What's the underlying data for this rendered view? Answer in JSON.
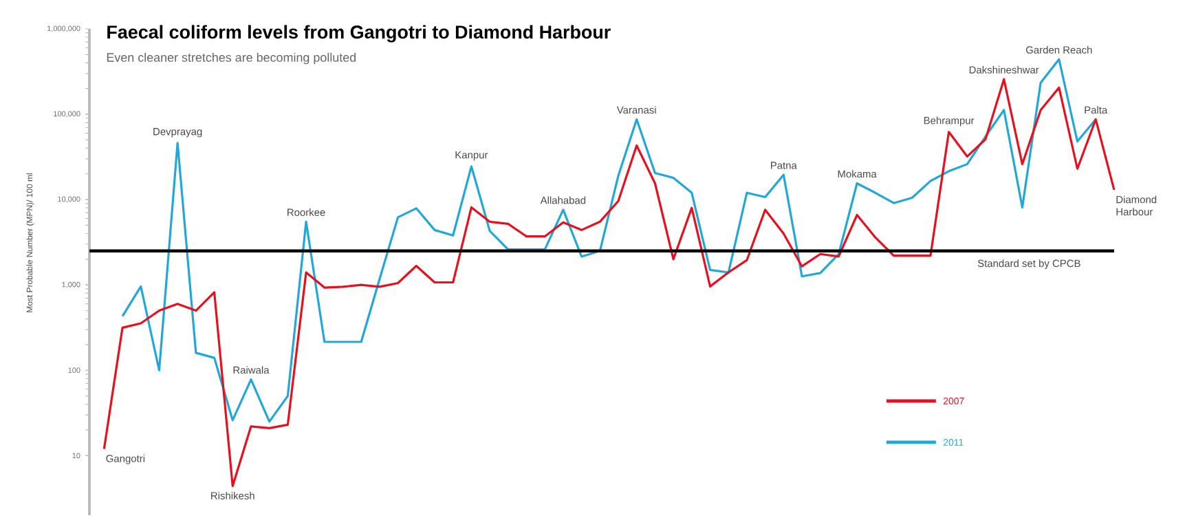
{
  "chart_data": {
    "type": "line",
    "title": "Faecal coliform levels from Gangotri to Diamond Harbour",
    "subtitle": "Even cleaner stretches are becoming polluted",
    "ylabel": "Most Probable Number (MPN)/ 100 ml",
    "categories": [
      null,
      null,
      null,
      null,
      null,
      null,
      null,
      null,
      null,
      null,
      null,
      null,
      null,
      null,
      null,
      null,
      null,
      null,
      null,
      null,
      null,
      null,
      null,
      null,
      null,
      null,
      null,
      null,
      null,
      null,
      null,
      null,
      null,
      null,
      null,
      null,
      null,
      null,
      null,
      null,
      null,
      null,
      null,
      null,
      null,
      null,
      null,
      null,
      null,
      null,
      null,
      null,
      null,
      null,
      null,
      null
    ],
    "series": [
      {
        "name": "2007",
        "color": "#e8101e",
        "values": [
          12,
          315,
          355,
          500,
          600,
          500,
          820,
          4.4,
          22,
          21,
          23,
          1400,
          930,
          950,
          1000,
          950,
          1050,
          1670,
          1070,
          1070,
          8100,
          5500,
          5200,
          3700,
          3700,
          5400,
          4400,
          5500,
          9600,
          43000,
          15500,
          2000,
          8000,
          960,
          1400,
          1950,
          7600,
          4000,
          1650,
          2300,
          2150,
          6600,
          3600,
          2200,
          2200,
          2200,
          62000,
          32000,
          51000,
          257000,
          26000,
          112000,
          205000,
          23000,
          87000,
          13000
        ]
      },
      {
        "name": "2011",
        "color": "#21a8d8",
        "values": [
          null,
          430,
          960,
          100,
          46000,
          160,
          140,
          26,
          78,
          25,
          50,
          5500,
          215,
          215,
          215,
          1170,
          6200,
          7900,
          4400,
          3800,
          24500,
          4300,
          2600,
          2600,
          2600,
          7600,
          2150,
          2500,
          19000,
          87000,
          20500,
          18000,
          12000,
          1500,
          1400,
          12000,
          10700,
          19500,
          1260,
          1380,
          2300,
          15500,
          12000,
          9100,
          10500,
          16500,
          21500,
          26000,
          55000,
          112000,
          8100,
          234000,
          440000,
          48000,
          87000,
          null
        ]
      }
    ],
    "annotations": [
      "Gangotri",
      "Devprayag",
      "Rishikesh",
      "Raiwala",
      "Roorkee",
      "Kanpur",
      "Allahabad",
      "Varanasi",
      "Patna",
      "Mokama",
      "Behrampur",
      "Dakshineshwar",
      "Garden Reach",
      "Palta",
      "Diamond Harbour"
    ],
    "log": "y",
    "ylim": [
      2,
      1000000
    ],
    "yticks": [
      10,
      100,
      {
        "value": 1000,
        "label": "1,000"
      },
      {
        "value": 10000,
        "label": "10,000"
      },
      {
        "value": 100000,
        "label": "100,000"
      },
      {
        "value": 1000000,
        "label": "1,000,000"
      }
    ],
    "ref_lines": [
      {
        "axis": "y",
        "value": 2500,
        "label": "Standard set by CPCB",
        "color": "#000000"
      }
    ],
    "tick_labels": "y",
    "legend": "bottom right",
    "grid": false,
    "marker": "none",
    "line_style": "solid"
  }
}
